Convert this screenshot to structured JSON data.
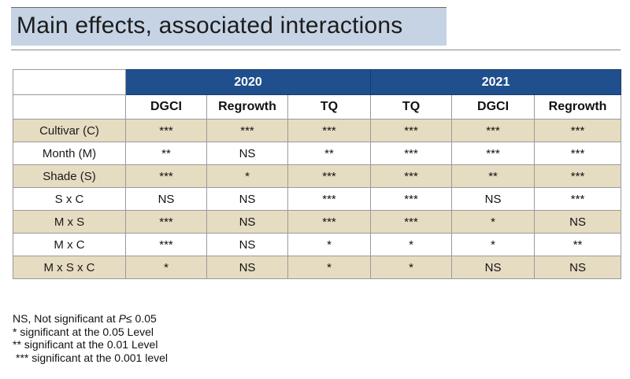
{
  "title": "Main effects, associated interactions",
  "table": {
    "groups": [
      {
        "label": "2020",
        "span": 3
      },
      {
        "label": "2021",
        "span": 3
      }
    ],
    "columns": [
      "DGCI",
      "Regrowth",
      "TQ",
      "TQ",
      "DGCI",
      "Regrowth"
    ],
    "rows": [
      {
        "label": "Cultivar (C)",
        "shaded": true,
        "cells": [
          "***",
          "***",
          "***",
          "***",
          "***",
          "***"
        ]
      },
      {
        "label": "Month (M)",
        "shaded": false,
        "cells": [
          "**",
          "NS",
          "**",
          "***",
          "***",
          "***"
        ]
      },
      {
        "label": "Shade (S)",
        "shaded": true,
        "cells": [
          "***",
          "*",
          "***",
          "***",
          "**",
          "***"
        ]
      },
      {
        "label": "S x C",
        "shaded": false,
        "cells": [
          "NS",
          "NS",
          "***",
          "***",
          "NS",
          "***"
        ]
      },
      {
        "label": "M x S",
        "shaded": true,
        "cells": [
          "***",
          "NS",
          "***",
          "***",
          "*",
          "NS"
        ]
      },
      {
        "label": "M x C",
        "shaded": false,
        "cells": [
          "***",
          "NS",
          "*",
          "*",
          "*",
          "**"
        ]
      },
      {
        "label": "M x S x C",
        "shaded": true,
        "cells": [
          "*",
          "NS",
          "*",
          "*",
          "NS",
          "NS"
        ]
      }
    ]
  },
  "notes": {
    "ns_prefix": "NS, Not significant at ",
    "ns_p": "P",
    "ns_suffix": "≤ 0.05",
    "line1": "* significant at the 0.05 Level",
    "line2": "** significant at the 0.01 Level",
    "line3": "*** significant at the 0.001 level"
  },
  "colors": {
    "header_blue": "#1f4f8c",
    "title_band": "#c5d3e4",
    "row_shade": "#e6dcc2"
  }
}
